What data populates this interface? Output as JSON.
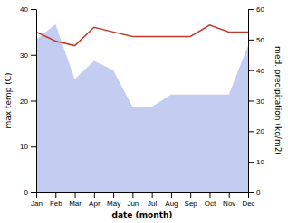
{
  "chart_data": {
    "type": "line",
    "categories": [
      "Jan",
      "Feb",
      "Mar",
      "Apr",
      "May",
      "Jun",
      "Jul",
      "Aug",
      "Sep",
      "Oct",
      "Nov",
      "Dec"
    ],
    "series": [
      {
        "type": "area",
        "axis": "y2",
        "color": "#b8c4ef",
        "values": [
          50,
          55,
          37,
          43,
          40,
          28,
          28,
          32,
          32,
          32,
          32,
          48
        ]
      },
      {
        "type": "line",
        "color": "#c0392b",
        "values": [
          35.0,
          33.0,
          32.0,
          36.0,
          35.0,
          34.0,
          34.0,
          34.0,
          34.0,
          36.5,
          35.0,
          35.0
        ]
      }
    ],
    "xlabel": "date (month)",
    "ylabel": "max temp (C)",
    "y2label": "med. precipitation (kg/m2)",
    "ylim": [
      0,
      40
    ],
    "yticks": [
      0,
      10,
      20,
      30,
      40
    ],
    "y2lim": [
      0,
      60
    ],
    "y2ticks": [
      0,
      10,
      20,
      30,
      40,
      50,
      60
    ],
    "grid": false
  }
}
